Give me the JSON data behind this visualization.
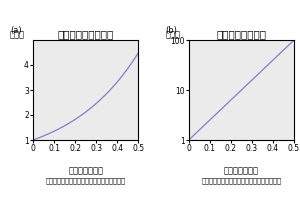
{
  "title_a": "医療的コストの増加",
  "title_b": "経済コストの増加",
  "label_a": "(a)",
  "label_b": "(b)",
  "ylabel_unit": "（倍）",
  "xlabel_main": "感染対策の遅れ",
  "xlabel_sub": "（元の水準に戻るまでの時間で割ってある）",
  "xlim": [
    0,
    0.5
  ],
  "ylim_a": [
    1,
    5
  ],
  "ylim_b_log": [
    1,
    100
  ],
  "xticks": [
    0,
    0.1,
    0.2,
    0.3,
    0.4,
    0.5
  ],
  "yticks_a": [
    1,
    2,
    3,
    4
  ],
  "yticks_b": [
    1,
    10,
    100
  ],
  "line_color": "#8080c8",
  "bg_color": "#ebebeb",
  "title_fontsize": 7.5,
  "label_fontsize": 6,
  "tick_fontsize": 5.5,
  "xlabel_fontsize": 6,
  "xlabel_sub_fontsize": 4.8,
  "exp_a": 3.0,
  "exp_b": 9.2
}
